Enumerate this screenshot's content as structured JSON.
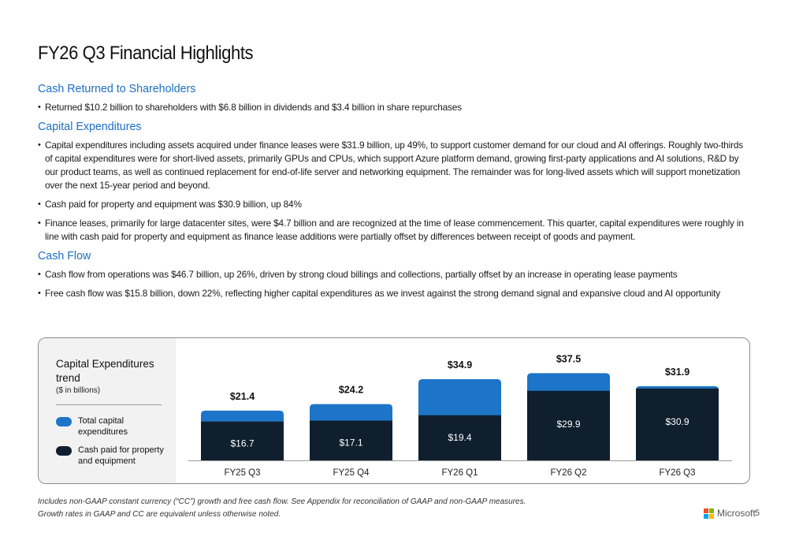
{
  "title": "FY26 Q3 Financial Highlights",
  "sections": [
    {
      "heading": "Cash Returned to Shareholders",
      "bullets": [
        "Returned $10.2 billion to shareholders with $6.8 billion in dividends and $3.4 billion in share repurchases"
      ]
    },
    {
      "heading": "Capital Expenditures",
      "bullets": [
        "Capital expenditures including assets acquired under finance leases were $31.9 billion, up 49%, to support customer demand for our cloud and AI offerings. Roughly two-thirds of capital expenditures were for short-lived assets, primarily GPUs and CPUs, which support Azure platform demand, growing first-party applications and AI solutions, R&D by our product teams, as well as continued replacement for end-of-life server and networking equipment. The remainder was for long-lived assets which will support monetization over the next 15-year period and beyond.",
        "Cash paid for property and equipment was $30.9 billion, up 84%",
        "Finance leases, primarily for large datacenter sites, were $4.7 billion and are recognized at the time of lease commencement. This quarter, capital expenditures were roughly in line with cash paid for property and equipment as finance lease additions were partially offset by differences between receipt of goods and payment."
      ]
    },
    {
      "heading": "Cash Flow",
      "bullets": [
        "Cash flow from operations was $46.7 billion, up 26%, driven by strong cloud billings and collections, partially offset by an increase in operating lease payments",
        "Free cash flow was $15.8 billion, down 22%, reflecting higher capital expenditures as we invest against the strong demand signal and expansive cloud and AI opportunity"
      ]
    }
  ],
  "chart_data": {
    "type": "bar",
    "stacked": false,
    "overlaid": true,
    "title": "Capital Expenditures trend",
    "subtitle": "($ in billions)",
    "categories": [
      "FY25 Q3",
      "FY25 Q4",
      "FY26 Q1",
      "FY26 Q2",
      "FY26 Q3"
    ],
    "series": [
      {
        "name": "Total capital expenditures",
        "values": [
          21.4,
          24.2,
          34.9,
          37.5,
          31.9
        ],
        "labels": [
          "$21.4",
          "$24.2",
          "$34.9",
          "$37.5",
          "$31.9"
        ],
        "color": "#1c75c8"
      },
      {
        "name": "Cash paid for property and equipment",
        "values": [
          16.7,
          17.1,
          19.4,
          29.9,
          30.9
        ],
        "labels": [
          "$16.7",
          "$17.1",
          "$19.4",
          "$29.9",
          "$30.9"
        ],
        "color": "#0f1f2e"
      }
    ],
    "ylim": [
      0,
      40
    ],
    "grid": false,
    "legend": "left"
  },
  "footer": {
    "line1": "Includes non-GAAP constant currency (“CC”) growth and free cash flow. See Appendix for reconciliation of GAAP and non-GAAP measures.",
    "line2": "Growth rates in GAAP and CC are equivalent unless otherwise noted."
  },
  "brand": {
    "name": "Microsoft",
    "colors": [
      "#f25022",
      "#7fba00",
      "#00a4ef",
      "#ffb900"
    ]
  },
  "page_number": "5"
}
